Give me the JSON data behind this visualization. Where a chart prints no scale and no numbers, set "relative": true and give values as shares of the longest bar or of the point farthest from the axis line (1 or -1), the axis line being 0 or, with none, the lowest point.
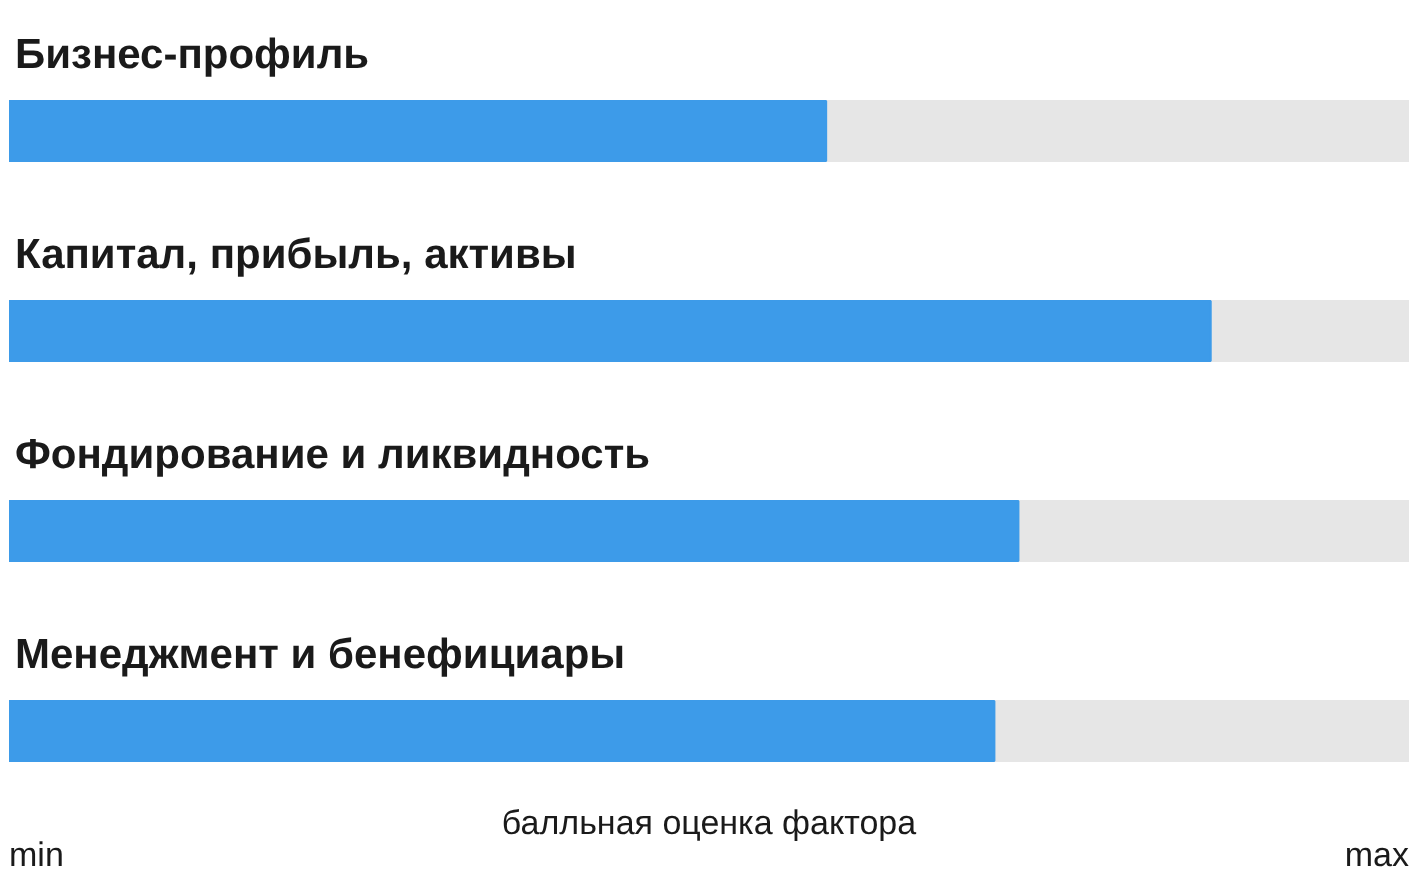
{
  "chart_data": {
    "type": "bar",
    "orientation": "horizontal",
    "relative": true,
    "categories": [
      "Бизнес-профиль",
      "Капитал, прибыль, активы",
      "Фондирование и ликвидность",
      "Менеджмент и бенефициары"
    ],
    "values": [
      0.68,
      1,
      0.84,
      0.82
    ],
    "color": "#3d9be9",
    "xlabel": "балльная оценка фактора",
    "annotations": [
      "min",
      "max"
    ],
    "grid": false
  }
}
